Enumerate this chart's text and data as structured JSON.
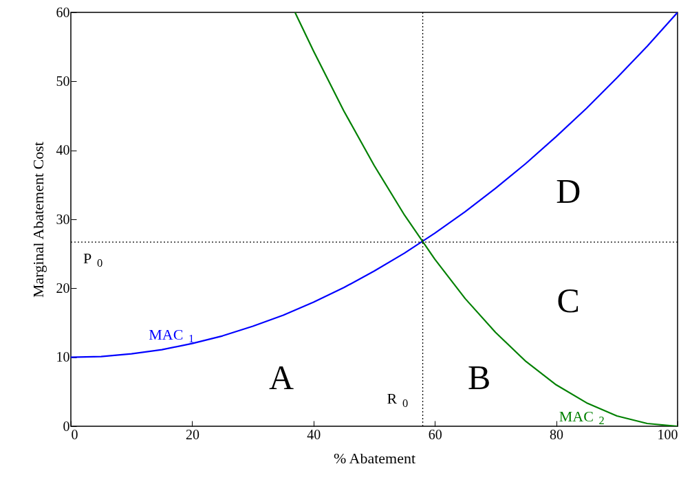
{
  "chart_data": {
    "type": "line",
    "xlabel": "% Abatement",
    "ylabel": "Marginal Abatement Cost",
    "xlim": [
      0,
      100
    ],
    "ylim": [
      0,
      60
    ],
    "xticks": [
      0,
      20,
      40,
      60,
      80,
      100
    ],
    "yticks": [
      0,
      10,
      20,
      30,
      40,
      50,
      60
    ],
    "series": [
      {
        "name": "MAC $_{1}$",
        "color": "#0000ff",
        "x": [
          0,
          5,
          10,
          15,
          20,
          25,
          30,
          35,
          40,
          45,
          50,
          55,
          60,
          65,
          70,
          75,
          80,
          85,
          90,
          95,
          100
        ],
        "values": [
          10,
          10.1,
          10.5,
          11.1,
          12,
          13.1,
          14.5,
          16.1,
          18,
          20.1,
          22.5,
          25.1,
          28,
          31.1,
          34.5,
          38.1,
          42,
          46.1,
          50.5,
          55.1,
          60
        ]
      },
      {
        "name": "MAC $_{2}$",
        "color": "#008000",
        "x": [
          37,
          40,
          45,
          50,
          55,
          60,
          65,
          70,
          75,
          80,
          85,
          90,
          95,
          100
        ],
        "values": [
          59.9,
          54.4,
          45.7,
          37.8,
          30.6,
          24.2,
          18.5,
          13.6,
          9.4,
          6.0,
          3.4,
          1.5,
          0.4,
          0
        ]
      }
    ],
    "ref_lines": [
      {
        "axis": "y",
        "value": 26.7,
        "label": "P$_{0}$",
        "color": "#000000",
        "line_style": "dotted"
      },
      {
        "axis": "x",
        "value": 58,
        "label": "R$_{0}$",
        "color": "#000000",
        "line_style": "dotted"
      }
    ],
    "annotations": [
      "A",
      "B",
      "C",
      "D"
    ]
  }
}
